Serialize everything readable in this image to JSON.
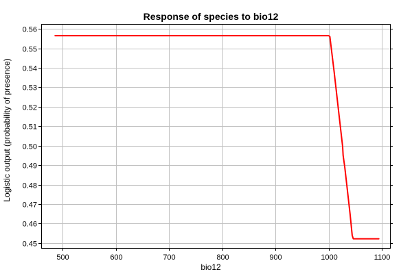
{
  "chart_data": {
    "type": "line",
    "title": "Response of species to bio12",
    "xlabel": "bio12",
    "ylabel": "Logistic output (probability of presence)",
    "xlim": [
      460,
      1115
    ],
    "ylim": [
      0.4475,
      0.5625
    ],
    "xticks": [
      500,
      600,
      700,
      800,
      900,
      1000,
      1100
    ],
    "yticks": [
      0.45,
      0.46,
      0.47,
      0.48,
      0.49,
      0.5,
      0.51,
      0.52,
      0.53,
      0.54,
      0.55,
      0.56
    ],
    "xtick_labels": [
      "500",
      "600",
      "700",
      "800",
      "900",
      "1000",
      "1100"
    ],
    "ytick_labels": [
      "0.45",
      "0.46",
      "0.47",
      "0.48",
      "0.49",
      "0.50",
      "0.51",
      "0.52",
      "0.53",
      "0.54",
      "0.55",
      "0.56"
    ],
    "grid": true,
    "series": [
      {
        "color": "#ff0000",
        "x": [
          486,
          1000,
          1002,
          1010,
          1020,
          1026,
          1027,
          1030,
          1040,
          1044,
          1046,
          1094
        ],
        "y": [
          0.5565,
          0.5565,
          0.556,
          0.538,
          0.514,
          0.4995,
          0.495,
          0.489,
          0.465,
          0.454,
          0.4522,
          0.4522
        ]
      }
    ]
  }
}
